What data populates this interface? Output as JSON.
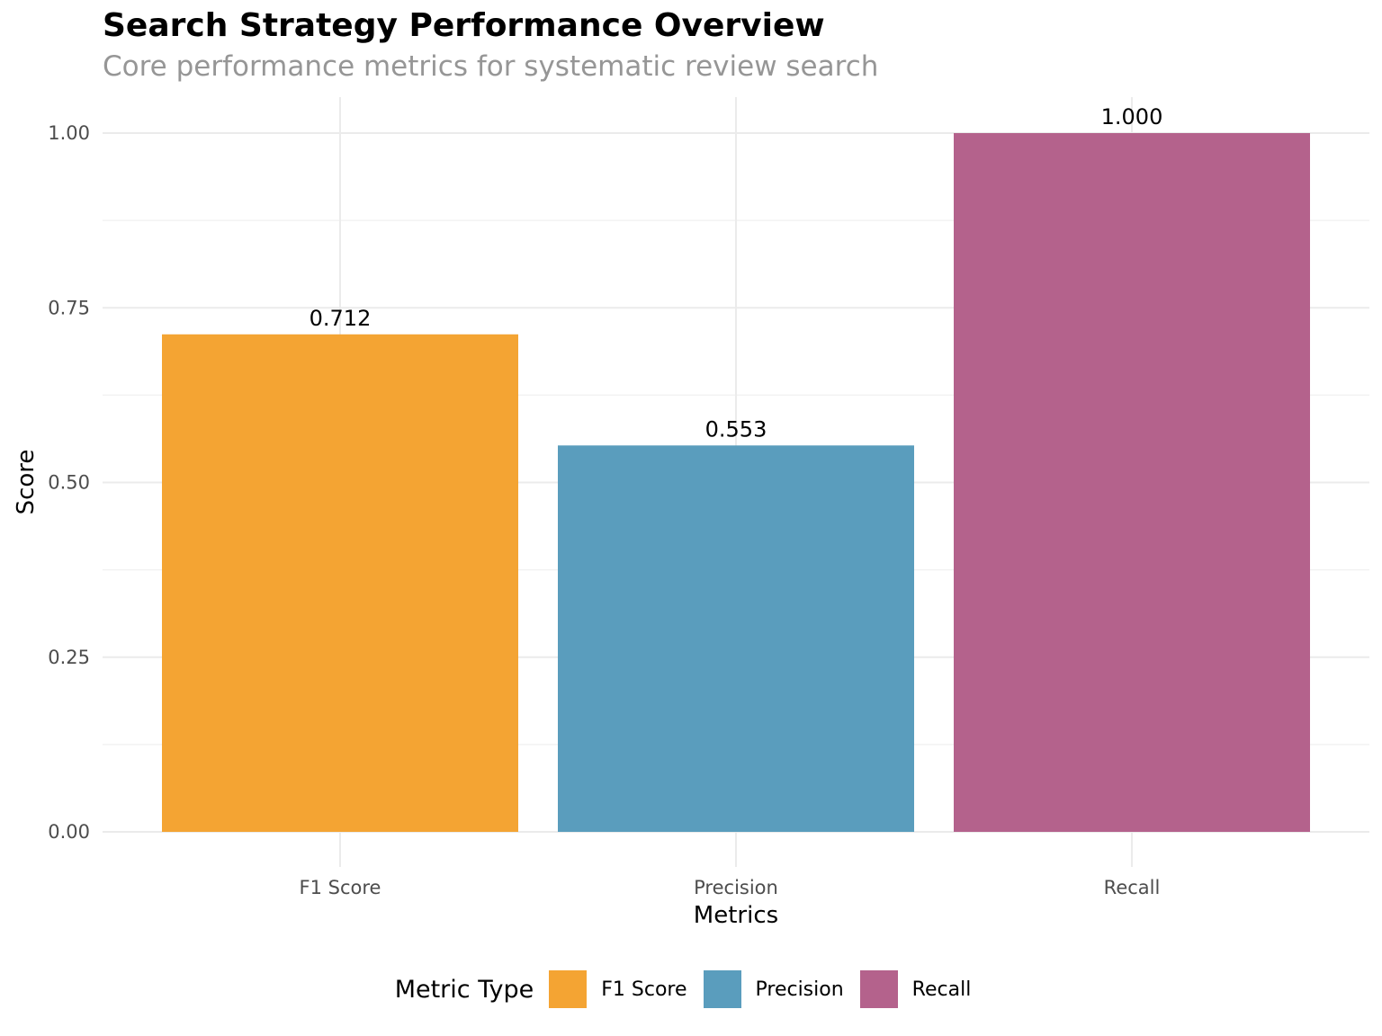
{
  "chart_data": {
    "type": "bar",
    "title": "Search Strategy Performance Overview",
    "subtitle": "Core performance metrics for systematic review search",
    "xlabel": "Metrics",
    "ylabel": "Score",
    "categories": [
      "F1 Score",
      "Precision",
      "Recall"
    ],
    "values": [
      0.712,
      0.553,
      1.0
    ],
    "data_labels": [
      "0.712",
      "0.553",
      "1.000"
    ],
    "colors": [
      "#f4a433",
      "#5a9dbd",
      "#b4628c"
    ],
    "ylim": [
      0,
      1.05
    ],
    "y_ticks": [
      0,
      0.25,
      0.5,
      0.75,
      1.0
    ],
    "y_tick_labels": [
      "0.00",
      "0.25",
      "0.50",
      "0.75",
      "1.00"
    ],
    "grid": true,
    "legend": {
      "title": "Metric Type",
      "position": "bottom",
      "entries": [
        "F1 Score",
        "Precision",
        "Recall"
      ]
    }
  }
}
